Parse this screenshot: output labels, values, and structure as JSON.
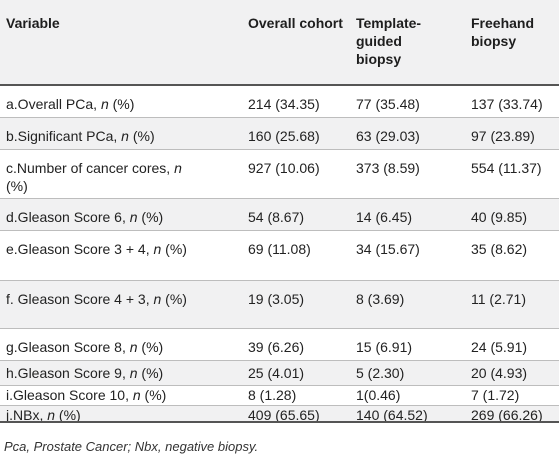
{
  "header": {
    "variable": "Variable",
    "overall": "Overall cohort",
    "template": "Template-guided biopsy",
    "freehand": "Freehand biopsy"
  },
  "rows": [
    {
      "label_pre": "a.Overall PCa, ",
      "label_n": "n",
      "label_post": " (%)",
      "overall": "214 (34.35)",
      "template": "77 (35.48)",
      "freehand": "137 (33.74)"
    },
    {
      "label_pre": "b.Significant PCa, ",
      "label_n": "n",
      "label_post": " (%)",
      "overall": "160 (25.68)",
      "template": "63 (29.03)",
      "freehand": "97 (23.89)"
    },
    {
      "label_pre": "c.Number of cancer cores, ",
      "label_n": "n",
      "label_post": " (%)",
      "overall": "927 (10.06)",
      "template": "373 (8.59)",
      "freehand": "554 (11.37)"
    },
    {
      "label_pre": "d.Gleason Score 6, ",
      "label_n": "n",
      "label_post": " (%)",
      "overall": "54 (8.67)",
      "template": "14 (6.45)",
      "freehand": "40 (9.85)"
    },
    {
      "label_pre": "e.Gleason Score 3 + 4, ",
      "label_n": "n",
      "label_post": " (%)",
      "overall": "69 (11.08)",
      "template": "34 (15.67)",
      "freehand": "35 (8.62)"
    },
    {
      "label_pre": "f. Gleason Score 4 + 3, ",
      "label_n": "n",
      "label_post": " (%)",
      "overall": "19 (3.05)",
      "template": "8 (3.69)",
      "freehand": "11 (2.71)"
    },
    {
      "label_pre": "g.Gleason Score 8, ",
      "label_n": "n",
      "label_post": " (%)",
      "overall": "39 (6.26)",
      "template": "15 (6.91)",
      "freehand": "24 (5.91)"
    },
    {
      "label_pre": "h.Gleason Score 9, ",
      "label_n": "n",
      "label_post": " (%)",
      "overall": "25 (4.01)",
      "template": "5 (2.30)",
      "freehand": "20 (4.93)"
    },
    {
      "label_pre": "i.Gleason Score 10, ",
      "label_n": "n",
      "label_post": " (%)",
      "overall": "8 (1.28)",
      "template": "1(0.46)",
      "freehand": "7 (1.72)"
    },
    {
      "label_pre": "j.NBx, ",
      "label_n": "n",
      "label_post": " (%)",
      "overall": "409 (65.65)",
      "template": "140 (64.52)",
      "freehand": "269 (66.26)"
    }
  ],
  "footnote": "Pca, Prostate Cancer; Nbx, negative biopsy."
}
